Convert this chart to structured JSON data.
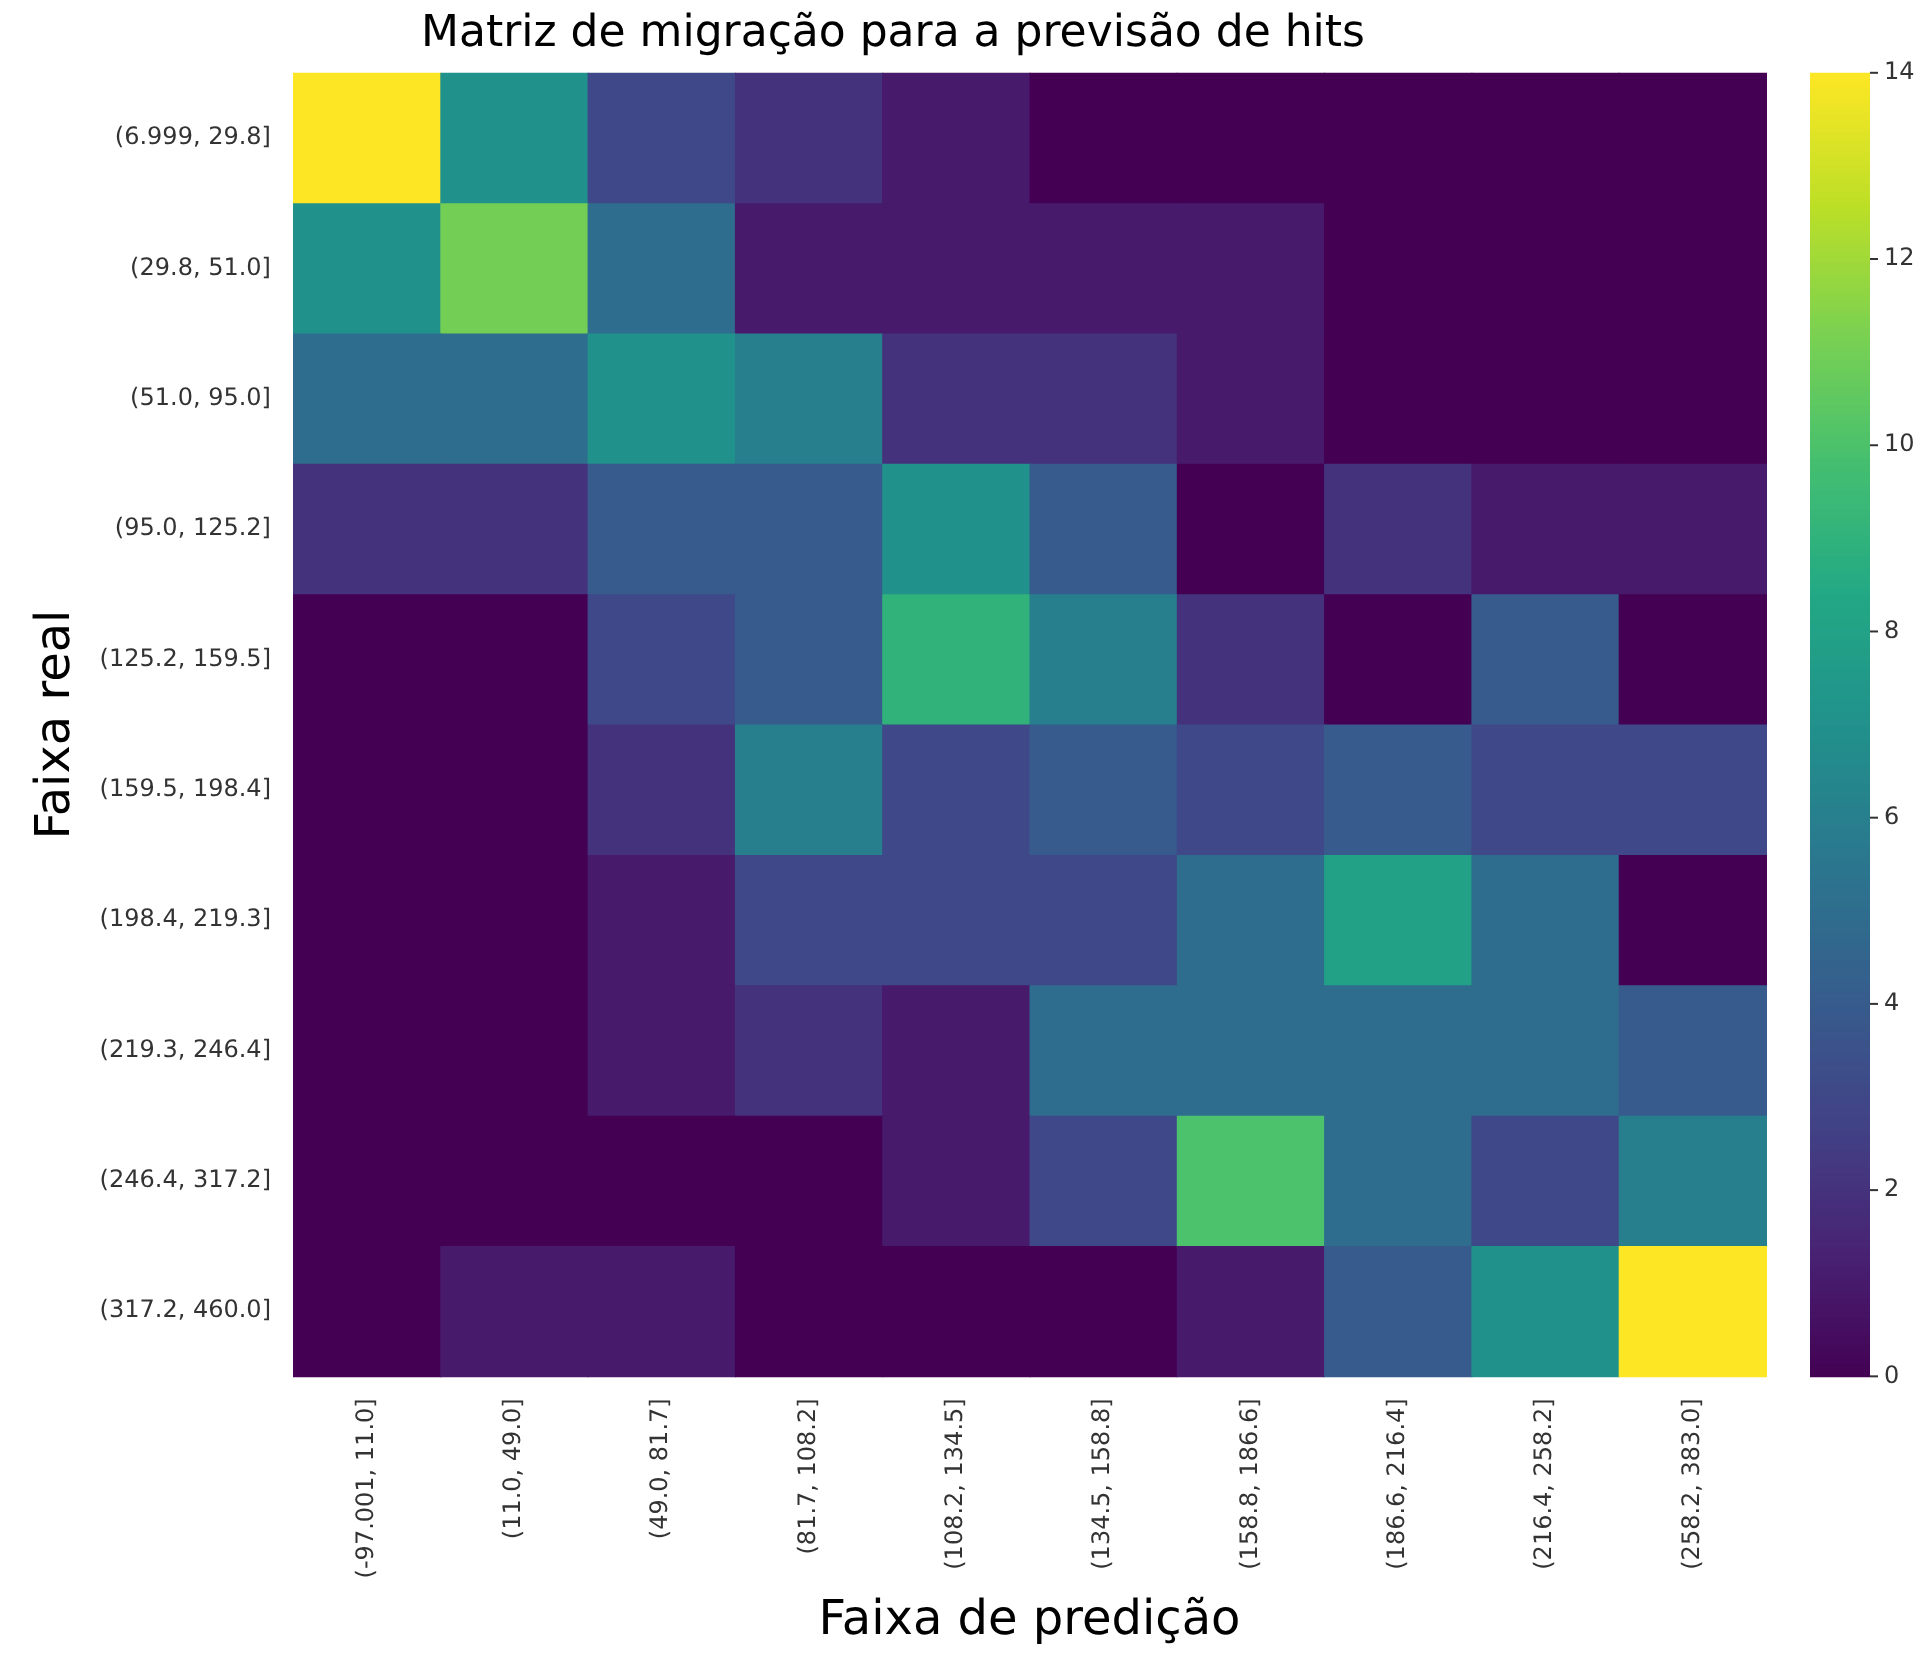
{
  "chart_data": {
    "type": "heatmap",
    "title": "Matriz de migração para a previsão de hits",
    "xlabel": "Faixa de predição",
    "ylabel": "Faixa real",
    "categories": [
      "(-97.001, 11.0]",
      "(11.0, 49.0]",
      "(49.0, 81.7]",
      "(81.7, 108.2]",
      "(108.2, 134.5]",
      "(134.5, 158.8]",
      "(158.8, 186.6]",
      "(186.6, 216.4]",
      "(216.4, 258.2]",
      "(258.2, 383.0]"
    ],
    "y_categories": [
      "(6.999, 29.8]",
      "(29.8, 51.0]",
      "(51.0, 95.0]",
      "(95.0, 125.2]",
      "(125.2, 159.5]",
      "(159.5, 198.4]",
      "(198.4, 219.3]",
      "(219.3, 246.4]",
      "(246.4, 317.2]",
      "(317.2, 460.0]"
    ],
    "cells": [
      [
        14,
        7,
        3,
        2,
        1,
        0,
        0,
        0,
        0,
        0
      ],
      [
        7,
        11,
        5,
        1,
        1,
        1,
        1,
        0,
        0,
        0
      ],
      [
        5,
        5,
        7,
        6,
        2,
        2,
        1,
        0,
        0,
        0
      ],
      [
        2,
        2,
        4,
        4,
        7,
        4,
        0,
        2,
        1,
        1
      ],
      [
        0,
        0,
        3,
        4,
        9,
        6,
        2,
        0,
        4,
        0
      ],
      [
        0,
        0,
        2,
        6,
        3,
        4,
        3,
        4,
        3,
        3
      ],
      [
        0,
        0,
        1,
        3,
        3,
        3,
        5,
        8,
        5,
        0
      ],
      [
        0,
        0,
        1,
        2,
        1,
        5,
        5,
        5,
        5,
        4
      ],
      [
        0,
        0,
        0,
        0,
        1,
        3,
        10,
        5,
        3,
        6
      ],
      [
        0,
        1,
        1,
        0,
        0,
        0,
        1,
        4,
        7,
        14
      ]
    ],
    "clim": [
      0,
      14
    ],
    "cticks": [
      0,
      2,
      4,
      6,
      8,
      10,
      12,
      14
    ]
  }
}
